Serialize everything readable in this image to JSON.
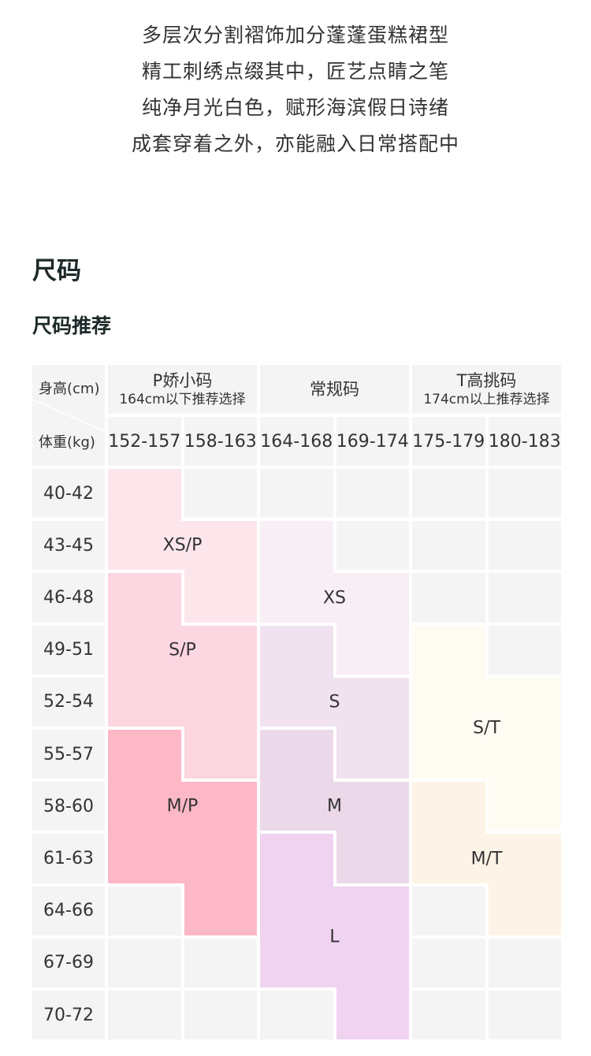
{
  "intro": {
    "lines": [
      "多层次分割褶饰加分蓬蓬蛋糕裙型",
      "精工刺绣点缀其中，匠艺点睛之笔",
      "纯净月光白色，赋形海滨假日诗绪",
      "成套穿着之外，亦能融入日常搭配中"
    ]
  },
  "section_title": "尺码",
  "subsection_title": "尺码推荐",
  "table": {
    "corner_height_label": "身高(cm)",
    "corner_weight_label": "体重(kg)",
    "groups": [
      {
        "name": "P娇小码",
        "note": "164cm以下推荐选择"
      },
      {
        "name": "常规码",
        "note": ""
      },
      {
        "name": "T高挑码",
        "note": "174cm以上推荐选择"
      }
    ],
    "heights": [
      "152-157",
      "158-163",
      "164-168",
      "169-174",
      "175-179",
      "180-183"
    ],
    "weights": [
      "40-42",
      "43-45",
      "46-48",
      "49-51",
      "52-54",
      "55-57",
      "58-60",
      "61-63",
      "64-66",
      "67-69",
      "70-72"
    ],
    "colors": {
      "XS/P": "#fce6ec",
      "S/P": "#fcd6e0",
      "M/P": "#fdb8c8",
      "XS": "#f8eef6",
      "S": "#f1e2f0",
      "M": "#ebd9ea",
      "L": "#efd3f0",
      "S/T": "#fefbf3",
      "M/T": "#fdf3e6",
      "empty": "#f4f4f4"
    },
    "grid": [
      [
        "XS/P",
        "empty",
        "empty",
        "empty",
        "empty",
        "empty"
      ],
      [
        "XS/P",
        "XS/P",
        "XS",
        "empty",
        "empty",
        "empty"
      ],
      [
        "S/P",
        "XS/P",
        "XS",
        "XS",
        "empty",
        "empty"
      ],
      [
        "S/P",
        "S/P",
        "S",
        "XS",
        "S/T",
        "empty"
      ],
      [
        "S/P",
        "S/P",
        "S",
        "S",
        "S/T",
        "S/T"
      ],
      [
        "M/P",
        "S/P",
        "M",
        "S",
        "S/T",
        "S/T"
      ],
      [
        "M/P",
        "M/P",
        "M",
        "M",
        "M/T",
        "S/T"
      ],
      [
        "M/P",
        "M/P",
        "L",
        "M",
        "M/T",
        "M/T"
      ],
      [
        "empty",
        "M/P",
        "L",
        "L",
        "empty",
        "M/T"
      ],
      [
        "empty",
        "empty",
        "L",
        "L",
        "empty",
        "empty"
      ],
      [
        "empty",
        "empty",
        "empty",
        "L",
        "empty",
        "empty"
      ]
    ],
    "size_labels": [
      {
        "text": "XS/P",
        "row": 1.5,
        "col": 1.0
      },
      {
        "text": "XS",
        "row": 2.5,
        "col": 3.0
      },
      {
        "text": "S/P",
        "row": 3.5,
        "col": 1.0
      },
      {
        "text": "S",
        "row": 4.5,
        "col": 3.0
      },
      {
        "text": "S/T",
        "row": 5.0,
        "col": 5.0
      },
      {
        "text": "M",
        "row": 6.5,
        "col": 3.0
      },
      {
        "text": "M/P",
        "row": 6.5,
        "col": 1.0
      },
      {
        "text": "M/T",
        "row": 7.5,
        "col": 5.0
      },
      {
        "text": "L",
        "row": 9.0,
        "col": 3.0
      }
    ]
  }
}
